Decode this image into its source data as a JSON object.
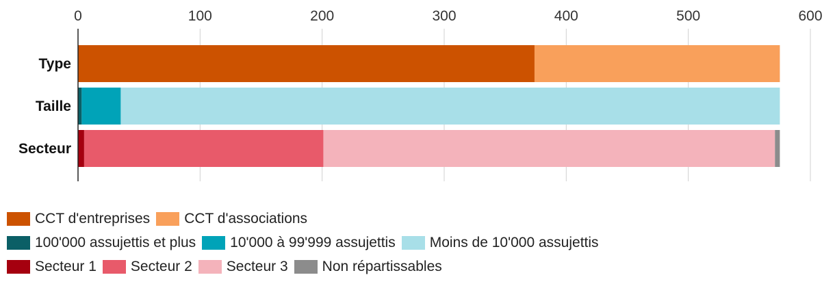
{
  "chart_data": {
    "type": "bar",
    "orientation": "horizontal",
    "stacked": true,
    "xlim": [
      0,
      600
    ],
    "x_ticks": [
      0,
      100,
      200,
      300,
      400,
      500,
      600
    ],
    "x_axis_position": "top",
    "grid": true,
    "categories": [
      "Type",
      "Taille",
      "Secteur"
    ],
    "series": [
      {
        "name": "CCT d'entreprises",
        "category": "Type",
        "value": 374,
        "color": "#cc5200"
      },
      {
        "name": "CCT d'associations",
        "category": "Type",
        "value": 201,
        "color": "#f9a05b"
      },
      {
        "name": "100'000 assujettis et plus",
        "category": "Taille",
        "value": 3,
        "color": "#0b5f66"
      },
      {
        "name": "10'000 à 99'999 assujettis",
        "category": "Taille",
        "value": 32,
        "color": "#00a3b8"
      },
      {
        "name": "Moins de 10'000 assujettis",
        "category": "Taille",
        "value": 540,
        "color": "#a8dfe8"
      },
      {
        "name": "Secteur 1",
        "category": "Secteur",
        "value": 5,
        "color": "#a5000f"
      },
      {
        "name": "Secteur 2",
        "category": "Secteur",
        "value": 196,
        "color": "#e85a6a"
      },
      {
        "name": "Secteur 3",
        "category": "Secteur",
        "value": 370,
        "color": "#f4b3bb"
      },
      {
        "name": "Non répartissables",
        "category": "Secteur",
        "value": 4,
        "color": "#8c8c8c"
      }
    ],
    "legend_placement": "bottom",
    "legend_rows": [
      [
        "CCT d'entreprises",
        "CCT d'associations"
      ],
      [
        "100'000 assujettis et plus",
        "10'000 à 99'999 assujettis",
        "Moins de 10'000 assujettis"
      ],
      [
        "Secteur 1",
        "Secteur 2",
        "Secteur 3",
        "Non répartissables"
      ]
    ]
  }
}
